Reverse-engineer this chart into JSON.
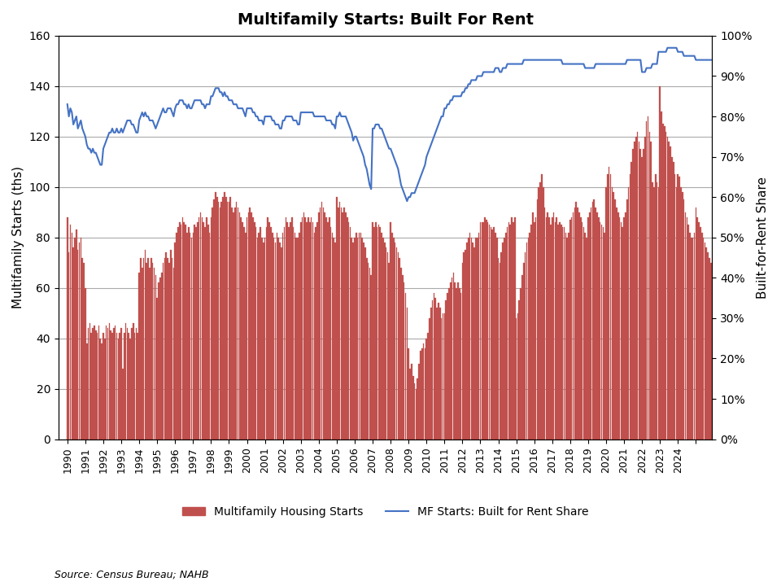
{
  "title": "Multifamily Starts: Built For Rent",
  "ylabel_left": "Multifamily Starts (ths)",
  "ylabel_right": "Built-for-Rent Share",
  "source": "Source: Census Bureau; NAHB",
  "bar_color": "#C0504D",
  "line_color": "#4472C4",
  "background_color": "#FFFFFF",
  "ylim_left": [
    0,
    160
  ],
  "ylim_right": [
    0,
    1.0
  ],
  "yticks_left": [
    0,
    20,
    40,
    60,
    80,
    100,
    120,
    140,
    160
  ],
  "yticks_right": [
    0.0,
    0.1,
    0.2,
    0.3,
    0.4,
    0.5,
    0.6,
    0.7,
    0.8,
    0.9,
    1.0
  ],
  "bar_data": [
    88,
    74,
    85,
    82,
    76,
    80,
    83,
    75,
    78,
    80,
    72,
    70,
    60,
    38,
    44,
    46,
    42,
    44,
    45,
    43,
    42,
    45,
    40,
    38,
    42,
    40,
    45,
    44,
    46,
    43,
    42,
    44,
    45,
    42,
    40,
    42,
    44,
    28,
    42,
    46,
    44,
    42,
    40,
    44,
    46,
    42,
    44,
    42,
    66,
    72,
    68,
    72,
    75,
    70,
    72,
    68,
    72,
    70,
    68,
    65,
    56,
    62,
    64,
    66,
    70,
    72,
    74,
    72,
    70,
    75,
    72,
    68,
    78,
    82,
    84,
    86,
    85,
    88,
    86,
    85,
    82,
    84,
    82,
    80,
    82,
    85,
    84,
    86,
    88,
    90,
    88,
    86,
    84,
    88,
    85,
    82,
    88,
    92,
    95,
    98,
    96,
    94,
    92,
    94,
    96,
    98,
    96,
    94,
    94,
    96,
    92,
    90,
    92,
    94,
    92,
    90,
    88,
    86,
    84,
    82,
    88,
    90,
    92,
    90,
    88,
    86,
    84,
    80,
    82,
    84,
    80,
    78,
    80,
    84,
    88,
    86,
    84,
    82,
    80,
    78,
    82,
    80,
    78,
    76,
    82,
    84,
    88,
    86,
    84,
    86,
    88,
    84,
    82,
    80,
    80,
    82,
    86,
    88,
    90,
    88,
    86,
    88,
    86,
    88,
    86,
    82,
    84,
    86,
    90,
    92,
    94,
    92,
    90,
    88,
    86,
    88,
    84,
    82,
    80,
    78,
    96,
    92,
    94,
    92,
    90,
    92,
    90,
    88,
    86,
    84,
    80,
    78,
    80,
    82,
    80,
    82,
    82,
    80,
    78,
    76,
    72,
    70,
    68,
    65,
    86,
    84,
    86,
    84,
    85,
    84,
    82,
    80,
    78,
    76,
    74,
    70,
    86,
    82,
    80,
    78,
    76,
    74,
    72,
    68,
    65,
    62,
    58,
    52,
    36,
    28,
    30,
    25,
    22,
    20,
    24,
    30,
    35,
    36,
    38,
    36,
    40,
    42,
    48,
    52,
    55,
    58,
    56,
    52,
    54,
    52,
    48,
    50,
    50,
    55,
    58,
    60,
    62,
    64,
    66,
    62,
    60,
    62,
    60,
    58,
    70,
    74,
    75,
    78,
    80,
    82,
    80,
    78,
    76,
    80,
    80,
    82,
    86,
    86,
    86,
    88,
    87,
    86,
    85,
    84,
    83,
    84,
    82,
    80,
    72,
    70,
    74,
    78,
    80,
    82,
    84,
    86,
    85,
    88,
    86,
    88,
    48,
    50,
    55,
    60,
    65,
    70,
    74,
    78,
    80,
    82,
    85,
    90,
    86,
    88,
    95,
    100,
    102,
    105,
    100,
    92,
    88,
    90,
    88,
    85,
    88,
    90,
    86,
    88,
    85,
    86,
    85,
    84,
    84,
    82,
    80,
    82,
    87,
    88,
    90,
    92,
    94,
    92,
    90,
    88,
    86,
    84,
    82,
    80,
    88,
    90,
    92,
    94,
    95,
    92,
    90,
    88,
    86,
    85,
    84,
    82,
    100,
    105,
    108,
    105,
    100,
    98,
    95,
    92,
    90,
    88,
    86,
    84,
    88,
    90,
    95,
    100,
    105,
    110,
    115,
    118,
    120,
    122,
    118,
    115,
    112,
    115,
    120,
    126,
    128,
    122,
    118,
    102,
    100,
    105,
    102,
    100,
    140,
    130,
    125,
    124,
    122,
    120,
    118,
    116,
    112,
    110,
    105,
    100,
    105,
    104,
    100,
    98,
    95,
    90,
    88,
    85,
    82,
    80,
    80,
    82,
    92,
    88,
    86,
    84,
    82,
    80,
    78,
    76,
    74,
    72,
    70,
    68
  ],
  "line_data": [
    0.83,
    0.8,
    0.82,
    0.81,
    0.78,
    0.79,
    0.8,
    0.77,
    0.78,
    0.79,
    0.77,
    0.76,
    0.75,
    0.73,
    0.72,
    0.72,
    0.71,
    0.72,
    0.71,
    0.71,
    0.7,
    0.69,
    0.68,
    0.68,
    0.72,
    0.73,
    0.74,
    0.75,
    0.76,
    0.76,
    0.77,
    0.76,
    0.76,
    0.77,
    0.76,
    0.76,
    0.77,
    0.76,
    0.77,
    0.78,
    0.79,
    0.79,
    0.79,
    0.78,
    0.78,
    0.77,
    0.76,
    0.76,
    0.79,
    0.8,
    0.81,
    0.8,
    0.81,
    0.8,
    0.8,
    0.79,
    0.79,
    0.79,
    0.78,
    0.77,
    0.78,
    0.79,
    0.8,
    0.81,
    0.82,
    0.81,
    0.81,
    0.82,
    0.82,
    0.82,
    0.81,
    0.8,
    0.82,
    0.83,
    0.83,
    0.84,
    0.84,
    0.84,
    0.83,
    0.83,
    0.82,
    0.83,
    0.82,
    0.82,
    0.83,
    0.84,
    0.84,
    0.84,
    0.84,
    0.84,
    0.83,
    0.83,
    0.82,
    0.83,
    0.83,
    0.83,
    0.85,
    0.85,
    0.86,
    0.87,
    0.87,
    0.87,
    0.86,
    0.86,
    0.85,
    0.86,
    0.85,
    0.85,
    0.84,
    0.84,
    0.84,
    0.83,
    0.83,
    0.83,
    0.82,
    0.82,
    0.82,
    0.82,
    0.81,
    0.8,
    0.82,
    0.82,
    0.82,
    0.82,
    0.81,
    0.81,
    0.8,
    0.8,
    0.79,
    0.79,
    0.79,
    0.78,
    0.8,
    0.8,
    0.8,
    0.8,
    0.8,
    0.79,
    0.79,
    0.78,
    0.78,
    0.78,
    0.77,
    0.77,
    0.79,
    0.79,
    0.8,
    0.8,
    0.8,
    0.8,
    0.8,
    0.79,
    0.79,
    0.79,
    0.78,
    0.78,
    0.81,
    0.81,
    0.81,
    0.81,
    0.81,
    0.81,
    0.81,
    0.81,
    0.81,
    0.8,
    0.8,
    0.8,
    0.8,
    0.8,
    0.8,
    0.8,
    0.8,
    0.79,
    0.79,
    0.79,
    0.79,
    0.78,
    0.78,
    0.77,
    0.8,
    0.8,
    0.81,
    0.8,
    0.8,
    0.8,
    0.8,
    0.79,
    0.78,
    0.77,
    0.76,
    0.74,
    0.75,
    0.75,
    0.74,
    0.73,
    0.72,
    0.71,
    0.7,
    0.68,
    0.67,
    0.65,
    0.63,
    0.62,
    0.77,
    0.77,
    0.78,
    0.78,
    0.78,
    0.77,
    0.77,
    0.76,
    0.75,
    0.74,
    0.73,
    0.72,
    0.72,
    0.71,
    0.7,
    0.69,
    0.68,
    0.67,
    0.65,
    0.63,
    0.62,
    0.61,
    0.6,
    0.59,
    0.6,
    0.6,
    0.61,
    0.61,
    0.61,
    0.62,
    0.63,
    0.64,
    0.65,
    0.66,
    0.67,
    0.68,
    0.7,
    0.71,
    0.72,
    0.73,
    0.74,
    0.75,
    0.76,
    0.77,
    0.78,
    0.79,
    0.8,
    0.8,
    0.82,
    0.82,
    0.83,
    0.83,
    0.84,
    0.84,
    0.85,
    0.85,
    0.85,
    0.85,
    0.85,
    0.85,
    0.86,
    0.86,
    0.87,
    0.87,
    0.88,
    0.88,
    0.89,
    0.89,
    0.89,
    0.89,
    0.9,
    0.9,
    0.9,
    0.9,
    0.91,
    0.91,
    0.91,
    0.91,
    0.91,
    0.91,
    0.91,
    0.91,
    0.92,
    0.92,
    0.92,
    0.91,
    0.91,
    0.92,
    0.92,
    0.92,
    0.93,
    0.93,
    0.93,
    0.93,
    0.93,
    0.93,
    0.93,
    0.93,
    0.93,
    0.93,
    0.93,
    0.94,
    0.94,
    0.94,
    0.94,
    0.94,
    0.94,
    0.94,
    0.94,
    0.94,
    0.94,
    0.94,
    0.94,
    0.94,
    0.94,
    0.94,
    0.94,
    0.94,
    0.94,
    0.94,
    0.94,
    0.94,
    0.94,
    0.94,
    0.94,
    0.94,
    0.94,
    0.93,
    0.93,
    0.93,
    0.93,
    0.93,
    0.93,
    0.93,
    0.93,
    0.93,
    0.93,
    0.93,
    0.93,
    0.93,
    0.93,
    0.93,
    0.92,
    0.92,
    0.92,
    0.92,
    0.92,
    0.92,
    0.92,
    0.93,
    0.93,
    0.93,
    0.93,
    0.93,
    0.93,
    0.93,
    0.93,
    0.93,
    0.93,
    0.93,
    0.93,
    0.93,
    0.93,
    0.93,
    0.93,
    0.93,
    0.93,
    0.93,
    0.93,
    0.93,
    0.94,
    0.94,
    0.94,
    0.94,
    0.94,
    0.94,
    0.94,
    0.94,
    0.94,
    0.94,
    0.91,
    0.91,
    0.91,
    0.92,
    0.92,
    0.92,
    0.92,
    0.93,
    0.93,
    0.93,
    0.93,
    0.96,
    0.96,
    0.96,
    0.96,
    0.96,
    0.96,
    0.97,
    0.97,
    0.97,
    0.97,
    0.97,
    0.97,
    0.97,
    0.96,
    0.96,
    0.96,
    0.96,
    0.95,
    0.95,
    0.95,
    0.95,
    0.95,
    0.95,
    0.95,
    0.95,
    0.94,
    0.94,
    0.94,
    0.94,
    0.94,
    0.94,
    0.94,
    0.94,
    0.94,
    0.94,
    0.94,
    0.94
  ],
  "start_year": 1990,
  "n_years": 36,
  "x_tick_labels": [
    "1990",
    "1991",
    "1992",
    "1993",
    "1994",
    "1995",
    "1996",
    "1997",
    "1998",
    "1999",
    "2000",
    "2001",
    "2002",
    "2003",
    "2004",
    "2005",
    "2006",
    "2007",
    "2008",
    "2009",
    "2010",
    "2011",
    "2012",
    "2013",
    "2014",
    "2015",
    "2016",
    "2017",
    "2018",
    "2019",
    "2020",
    "2021",
    "2022",
    "2023",
    "2024",
    ""
  ],
  "legend_bar_label": "Multifamily Housing Starts",
  "legend_line_label": "MF Starts: Built for Rent Share"
}
